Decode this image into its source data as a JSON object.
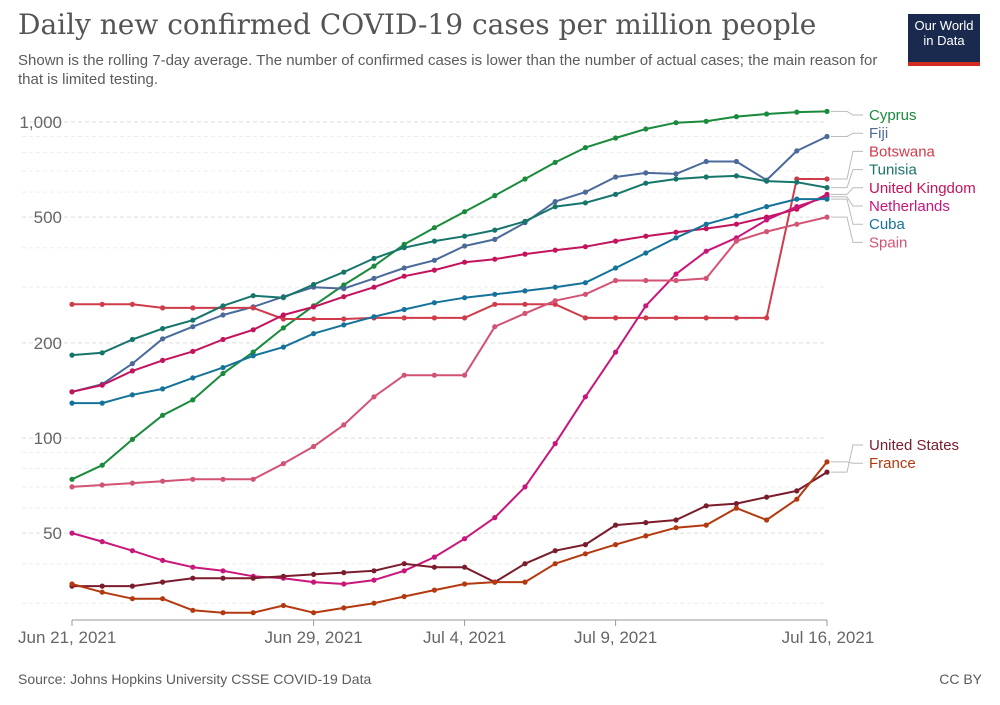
{
  "header": {
    "title": "Daily new confirmed COVID-19 cases per million people",
    "subtitle": "Shown is the rolling 7-day average. The number of confirmed cases is lower than the number of actual cases; the main reason for that is limited testing."
  },
  "logo": {
    "line1": "Our World",
    "line2": "in Data"
  },
  "footer": {
    "source": "Source: Johns Hopkins University CSSE COVID-19 Data",
    "license": "CC BY"
  },
  "chart_data": {
    "type": "line",
    "title": "Daily new confirmed COVID-19 cases per million people",
    "xlabel": "",
    "ylabel": "",
    "yscale": "log",
    "ylim": [
      25,
      1150
    ],
    "grid": true,
    "legend_placement": "right (line-end labels)",
    "x": [
      "2021-06-21",
      "2021-06-22",
      "2021-06-23",
      "2021-06-24",
      "2021-06-25",
      "2021-06-26",
      "2021-06-27",
      "2021-06-28",
      "2021-06-29",
      "2021-06-30",
      "2021-07-01",
      "2021-07-02",
      "2021-07-03",
      "2021-07-04",
      "2021-07-05",
      "2021-07-06",
      "2021-07-07",
      "2021-07-08",
      "2021-07-09",
      "2021-07-10",
      "2021-07-11",
      "2021-07-12",
      "2021-07-13",
      "2021-07-14",
      "2021-07-15",
      "2021-07-16"
    ],
    "x_ticks": [
      {
        "date": "2021-06-21",
        "label": "Jun 21, 2021"
      },
      {
        "date": "2021-06-29",
        "label": "Jun 29, 2021"
      },
      {
        "date": "2021-07-04",
        "label": "Jul 4, 2021"
      },
      {
        "date": "2021-07-09",
        "label": "Jul 9, 2021"
      },
      {
        "date": "2021-07-16",
        "label": "Jul 16, 2021"
      }
    ],
    "y_ticks": [
      {
        "value": 50,
        "label": "50"
      },
      {
        "value": 100,
        "label": "100"
      },
      {
        "value": 200,
        "label": "200"
      },
      {
        "value": 500,
        "label": "500"
      },
      {
        "value": 1000,
        "label": "1,000"
      }
    ],
    "series": [
      {
        "name": "Cyprus",
        "color": "#1a8a3c",
        "values": [
          74,
          82,
          99,
          118,
          132,
          160,
          187,
          223,
          262,
          305,
          350,
          410,
          463,
          520,
          585,
          660,
          745,
          830,
          890,
          950,
          995,
          1005,
          1040,
          1060,
          1075,
          1080
        ]
      },
      {
        "name": "Fiji",
        "color": "#4a6a9a",
        "values": [
          140,
          148,
          172,
          206,
          225,
          245,
          260,
          280,
          300,
          297,
          320,
          345,
          365,
          405,
          425,
          480,
          560,
          600,
          670,
          690,
          685,
          750,
          750,
          655,
          810,
          900
        ]
      },
      {
        "name": "Botswana",
        "color": "#d03b4a",
        "values": [
          265,
          265,
          265,
          258,
          258,
          258,
          258,
          238,
          238,
          238,
          240,
          240,
          240,
          240,
          265,
          265,
          265,
          240,
          240,
          240,
          240,
          240,
          240,
          240,
          660,
          660
        ]
      },
      {
        "name": "Tunisia",
        "color": "#16756a",
        "values": [
          183,
          186,
          205,
          222,
          236,
          262,
          282,
          278,
          306,
          335,
          370,
          400,
          420,
          435,
          455,
          485,
          540,
          555,
          590,
          640,
          660,
          670,
          675,
          650,
          645,
          620
        ]
      },
      {
        "name": "United Kingdom",
        "color": "#c3135c",
        "values": [
          140,
          147,
          163,
          176,
          188,
          205,
          220,
          245,
          260,
          280,
          300,
          325,
          340,
          360,
          368,
          382,
          393,
          403,
          420,
          435,
          448,
          460,
          475,
          500,
          530,
          590
        ]
      },
      {
        "name": "Netherlands",
        "color": "#c9167a",
        "values": [
          50,
          47,
          44,
          41,
          39,
          38,
          36.5,
          36,
          35,
          34.5,
          35.5,
          38,
          42,
          48,
          56,
          70,
          96,
          135,
          187,
          262,
          330,
          390,
          430,
          490,
          540,
          580
        ]
      },
      {
        "name": "Cuba",
        "color": "#15739a",
        "values": [
          129,
          129,
          137,
          143,
          155,
          167,
          182,
          194,
          214,
          228,
          242,
          255,
          268,
          278,
          285,
          292,
          300,
          310,
          345,
          385,
          430,
          475,
          505,
          540,
          570,
          570
        ]
      },
      {
        "name": "Spain",
        "color": "#d35374",
        "values": [
          70,
          71,
          72,
          73,
          74,
          74,
          74,
          83,
          94,
          110,
          135,
          158,
          158,
          158,
          225,
          248,
          272,
          285,
          315,
          315,
          315,
          320,
          420,
          450,
          475,
          500
        ]
      },
      {
        "name": "United States",
        "color": "#7a1c2c",
        "values": [
          34,
          34,
          34,
          35,
          36,
          36,
          36,
          36.5,
          37,
          37.5,
          38,
          40,
          39,
          39,
          35,
          40,
          44,
          46,
          53,
          54,
          55,
          61,
          62,
          65,
          68,
          78
        ]
      },
      {
        "name": "France",
        "color": "#b33a10",
        "values": [
          34.5,
          32.5,
          31,
          31,
          28.5,
          28,
          28,
          29.5,
          28,
          29,
          30,
          31.5,
          33,
          34.5,
          35,
          35,
          40,
          43,
          46,
          49,
          52,
          53,
          60,
          55,
          64,
          84
        ]
      }
    ]
  }
}
